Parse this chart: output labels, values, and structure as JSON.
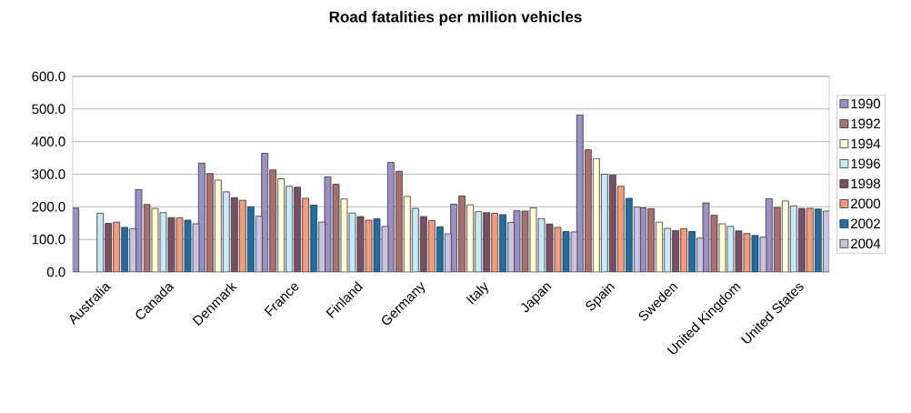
{
  "chart_data": {
    "type": "bar",
    "title": "Road fatalities per million vehicles",
    "categories": [
      "Australia",
      "Canada",
      "Denmark",
      "France",
      "Finland",
      "Germany",
      "Italy",
      "Japan",
      "Spain",
      "Sweden",
      "United Kingdom",
      "United States"
    ],
    "series": [
      {
        "name": "1990",
        "color": "#9a90c8",
        "values": [
          196,
          253,
          334,
          364,
          292,
          336,
          208,
          188,
          482,
          197,
          212,
          225
        ]
      },
      {
        "name": "1992",
        "color": "#a87070",
        "values": [
          null,
          207,
          302,
          313,
          269,
          309,
          233,
          187,
          375,
          194,
          174,
          198
        ]
      },
      {
        "name": "1994",
        "color": "#fffbd4",
        "values": [
          null,
          195,
          282,
          286,
          224,
          232,
          206,
          197,
          348,
          153,
          148,
          218
        ]
      },
      {
        "name": "1996",
        "color": "#c8e8f8",
        "values": [
          180,
          182,
          246,
          263,
          181,
          195,
          185,
          164,
          300,
          134,
          140,
          203
        ]
      },
      {
        "name": "1998",
        "color": "#7a5068",
        "values": [
          149,
          167,
          228,
          260,
          170,
          170,
          182,
          147,
          298,
          127,
          126,
          195
        ]
      },
      {
        "name": "2000",
        "color": "#f59a7a",
        "values": [
          153,
          166,
          220,
          226,
          159,
          158,
          180,
          137,
          263,
          133,
          118,
          195
        ]
      },
      {
        "name": "2002",
        "color": "#1b6ea8",
        "values": [
          137,
          159,
          200,
          205,
          163,
          139,
          176,
          124,
          226,
          124,
          112,
          193
        ]
      },
      {
        "name": "2004",
        "color": "#c8c4e0",
        "values": [
          133,
          148,
          171,
          153,
          140,
          117,
          152,
          123,
          199,
          104,
          107,
          187
        ]
      }
    ],
    "ylim": [
      0,
      600
    ],
    "yticks": [
      {
        "value": 0,
        "label": "0.0"
      },
      {
        "value": 100,
        "label": "100.0"
      },
      {
        "value": 200,
        "label": "200.0"
      },
      {
        "value": 300,
        "label": "300.0"
      },
      {
        "value": 400,
        "label": "400.0"
      },
      {
        "value": 500,
        "label": "500.0"
      },
      {
        "value": 600,
        "label": "600.0"
      }
    ],
    "grid": "y",
    "legend": "right"
  }
}
